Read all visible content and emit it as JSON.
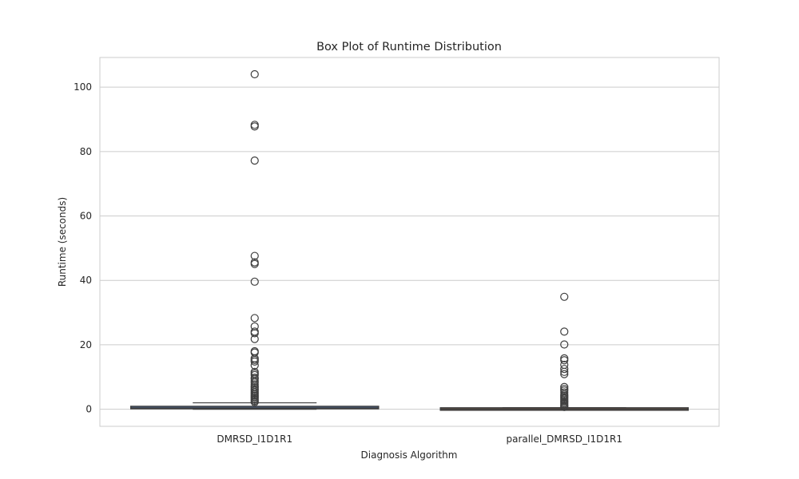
{
  "chart_data": {
    "type": "box",
    "title": "Box Plot of Runtime Distribution",
    "xlabel": "Diagnosis Algorithm",
    "ylabel": "Runtime (seconds)",
    "ylim": [
      -5.3,
      109.2
    ],
    "yticks": [
      0,
      20,
      40,
      60,
      80,
      100
    ],
    "grid": true,
    "categories": [
      "DMRSD_I1D1R1",
      "parallel_DMRSD_I1D1R1"
    ],
    "series": [
      {
        "color": "#4c72b0",
        "whisker_low": 0.0,
        "q1": 0.15,
        "median": 0.4,
        "q3": 0.9,
        "whisker_high": 2.0,
        "fliers": [
          104.0,
          88.3,
          87.8,
          77.2,
          47.6,
          45.6,
          45.1,
          39.6,
          28.3,
          25.7,
          24.1,
          23.6,
          21.8,
          18.0,
          17.6,
          15.8,
          15.3,
          14.8,
          13.6,
          11.6,
          11.1,
          10.6,
          9.8,
          9.4,
          8.8,
          8.3,
          7.7,
          7.2,
          6.8,
          6.3,
          5.9,
          5.4,
          5.0,
          4.6,
          4.2,
          3.8,
          3.4,
          3.0,
          2.6,
          2.2
        ]
      },
      {
        "color": "#dd8452",
        "whisker_low": 0.0,
        "q1": 0.02,
        "median": 0.06,
        "q3": 0.12,
        "whisker_high": 0.5,
        "fliers": [
          34.9,
          24.1,
          20.1,
          15.8,
          15.2,
          13.8,
          12.5,
          11.6,
          10.9,
          6.9,
          6.3,
          5.8,
          5.2,
          4.6,
          4.2,
          3.8,
          3.4,
          3.0,
          2.6,
          2.2,
          1.8,
          1.4,
          1.0,
          0.7
        ]
      }
    ]
  }
}
